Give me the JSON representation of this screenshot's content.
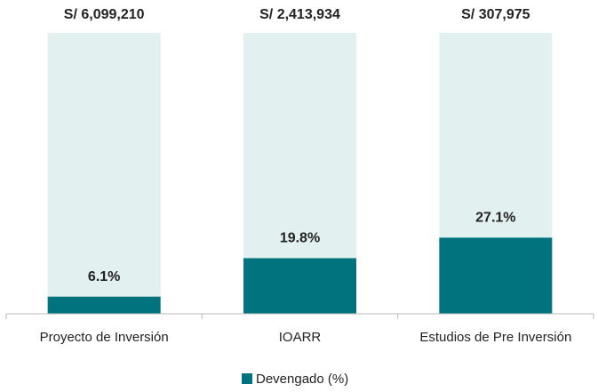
{
  "chart_data": {
    "type": "bar",
    "categories": [
      "Proyecto de Inversión",
      "IOARR",
      "Estudios de Pre Inversión"
    ],
    "series": [
      {
        "name": "Devengado (%)",
        "color": "#00737f",
        "values": [
          6.1,
          19.8,
          27.1
        ],
        "value_labels": [
          "6.1%",
          "19.8%",
          "27.1%"
        ]
      }
    ],
    "totals": [
      6099210,
      2413934,
      307975
    ],
    "total_labels": [
      "S/ 6,099,210",
      "S/ 2,413,934",
      "S/ 307,975"
    ],
    "background_color": "#e3f0f0",
    "ylim": [
      0,
      100
    ],
    "legend": "bottom"
  }
}
